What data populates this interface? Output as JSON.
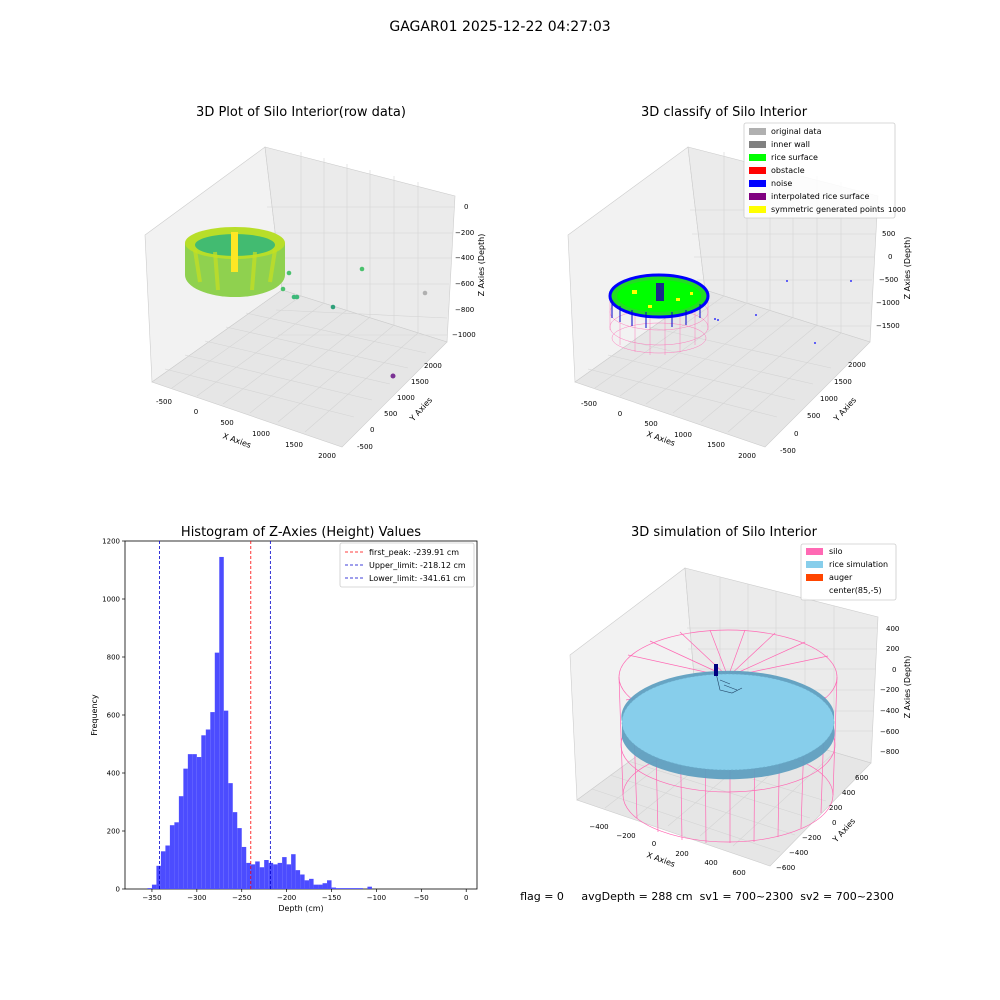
{
  "suptitle": "GAGAR01 2025-12-22 04:27:03",
  "colors": {
    "bar": "#4c4cff",
    "peak_line": "#ff0000",
    "limit_line": "#0000cc",
    "silo": "#ff69b4",
    "rice": "#87ceeb",
    "auger": "#ff4500",
    "noise": "#0000ff",
    "rice_surface": "#00ff00",
    "inner_wall": "#808080",
    "original_data": "#b0b0b0",
    "obstacle": "#ff0000",
    "interpolated": "#800080",
    "symmetric": "#ffff00"
  },
  "panels": {
    "raw": {
      "title": "3D Plot of Silo Interior(row data)",
      "xlabel": "X Axies",
      "ylabel": "Y Axies",
      "zlabel": "Z Axies (Depth)",
      "xticks": [
        "-500",
        "0",
        "500",
        "1000",
        "1500",
        "2000"
      ],
      "yticks": [
        "-500",
        "0",
        "500",
        "1000",
        "1500",
        "2000"
      ],
      "zticks": [
        "0",
        "−200",
        "−400",
        "−600",
        "−800",
        "−1000"
      ]
    },
    "classify": {
      "title": "3D classify of Silo Interior",
      "xlabel": "X Axies",
      "ylabel": "Y Axies",
      "zlabel": "Z Axies (Depth)",
      "xticks": [
        "-500",
        "0",
        "500",
        "1000",
        "1500",
        "2000"
      ],
      "yticks": [
        "-500",
        "0",
        "500",
        "1000",
        "1500",
        "2000"
      ],
      "zticks": [
        "1000",
        "500",
        "0",
        "−500",
        "−1000",
        "−1500"
      ],
      "legend": [
        {
          "label": "original data",
          "color": "#b0b0b0"
        },
        {
          "label": "inner wall",
          "color": "#808080"
        },
        {
          "label": "rice surface",
          "color": "#00ff00"
        },
        {
          "label": "obstacle",
          "color": "#ff0000"
        },
        {
          "label": "noise",
          "color": "#0000ff"
        },
        {
          "label": "interpolated rice surface",
          "color": "#800080"
        },
        {
          "label": "symmetric generated points",
          "color": "#ffff00"
        }
      ]
    },
    "simulation": {
      "title": "3D simulation of Silo Interior",
      "xlabel": "X Axies",
      "ylabel": "Y Axies",
      "zlabel": "Z Axies (Depth)",
      "xticks": [
        "−400",
        "−200",
        "0",
        "200",
        "400",
        "600"
      ],
      "yticks": [
        "−600",
        "−400",
        "−200",
        "0",
        "200",
        "400",
        "600"
      ],
      "zticks": [
        "400",
        "200",
        "0",
        "−200",
        "−400",
        "−600",
        "−800"
      ],
      "legend": [
        {
          "label": "silo",
          "color": "#ff69b4"
        },
        {
          "label": "rice simulation",
          "color": "#87ceeb"
        },
        {
          "label": "auger",
          "color": "#ff4500"
        },
        {
          "label": "center(85,-5)",
          "color": ""
        }
      ]
    }
  },
  "status_line": "flag = 0     avgDepth = 288 cm  sv1 = 700~2300  sv2 = 700~2300",
  "chart_data": {
    "type": "bar",
    "title": "Histogram of Z-Axies (Height) Values",
    "xlabel": "Depth (cm)",
    "ylabel": "Frequency",
    "xlim": [
      -380,
      12
    ],
    "ylim": [
      0,
      1200
    ],
    "xticks": [
      -350,
      -300,
      -250,
      -200,
      -150,
      -100,
      -50,
      0
    ],
    "yticks": [
      0,
      200,
      400,
      600,
      800,
      1000,
      1200
    ],
    "bin_start": -355,
    "bin_width": 5,
    "values": [
      3,
      15,
      80,
      130,
      150,
      220,
      230,
      320,
      415,
      465,
      465,
      455,
      530,
      550,
      610,
      815,
      1145,
      615,
      365,
      265,
      210,
      145,
      90,
      85,
      95,
      75,
      100,
      90,
      85,
      90,
      110,
      85,
      120,
      65,
      50,
      30,
      35,
      15,
      15,
      20,
      30,
      5,
      3,
      3,
      3,
      3,
      3,
      3,
      0,
      8
    ],
    "legend_position": "upper right",
    "lines": [
      {
        "name": "first_peak: -239.91 cm",
        "x": -239.91,
        "color": "#ff0000"
      },
      {
        "name": "Upper_limit: -218.12 cm",
        "x": -218.12,
        "color": "#0000cc"
      },
      {
        "name": "Lower_limit: -341.61 cm",
        "x": -341.61,
        "color": "#0000cc"
      }
    ]
  }
}
